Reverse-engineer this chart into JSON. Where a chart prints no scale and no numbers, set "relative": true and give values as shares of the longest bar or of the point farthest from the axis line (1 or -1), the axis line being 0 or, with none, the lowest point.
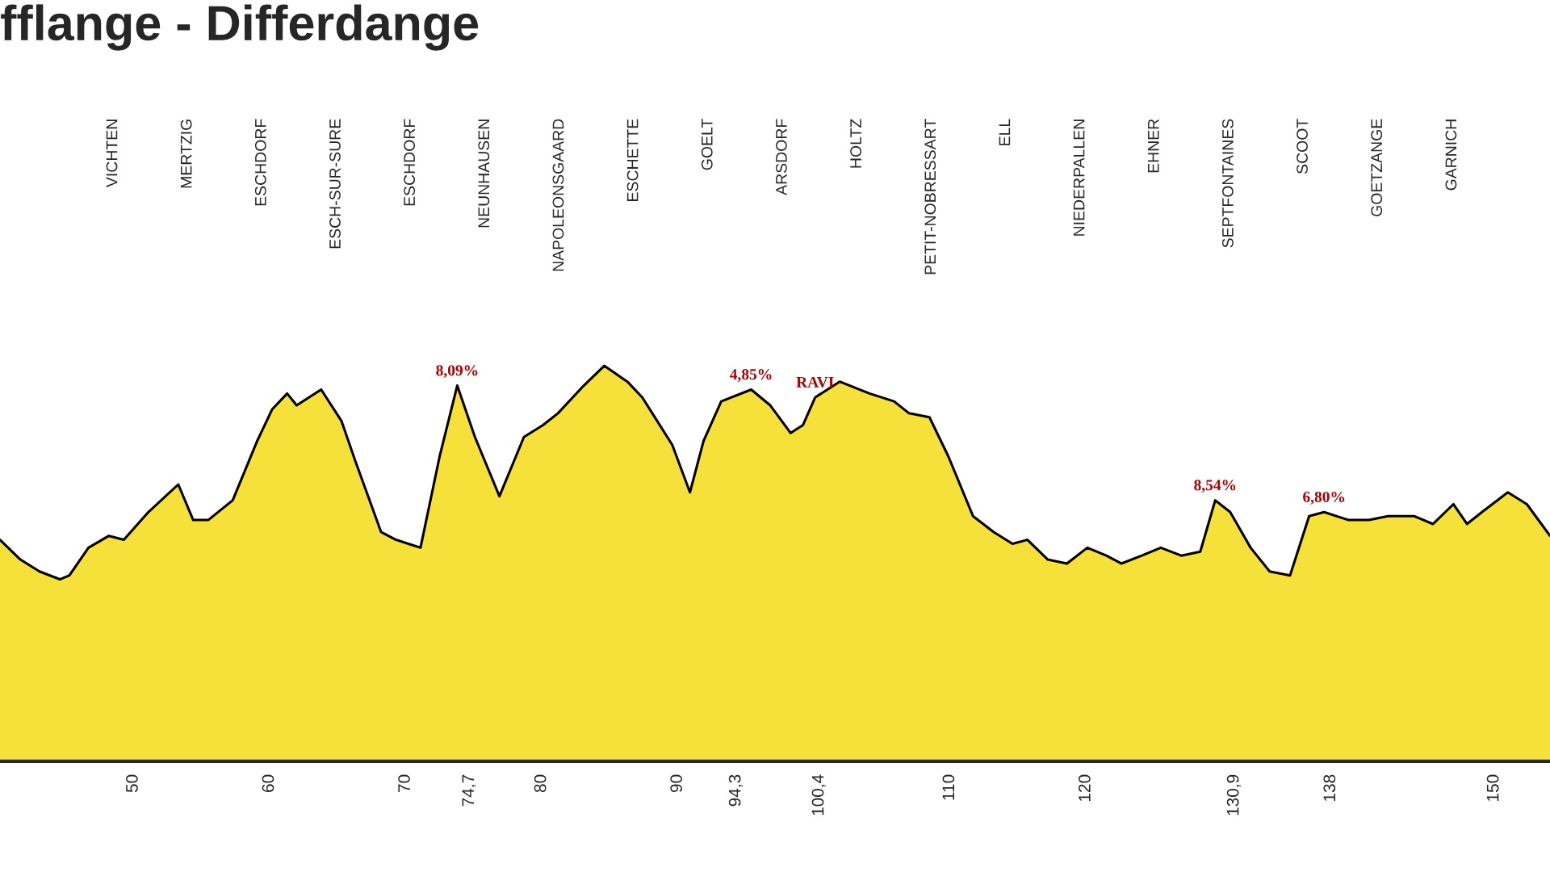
{
  "chart_data": {
    "type": "area",
    "title": "fflange - Differdange",
    "relative": true,
    "xlim": [
      40.2,
      154.1
    ],
    "xticks": [
      50,
      60,
      70,
      {
        "value": 74.7,
        "label": "74,7"
      },
      80,
      90,
      {
        "value": 94.3,
        "label": "94,3"
      },
      {
        "value": 100.4,
        "label": "100,4"
      },
      110,
      120,
      {
        "value": 130.9,
        "label": "130,9"
      },
      138,
      150
    ],
    "grid": false,
    "legend": false,
    "series": [
      {
        "color": "#f6e03a",
        "x": [
          40.2,
          41.7,
          43.1,
          44.6,
          45.3,
          46.7,
          48.2,
          49.3,
          51.1,
          53.3,
          54.4,
          55.5,
          57.3,
          59.1,
          60.2,
          61.3,
          62.0,
          63.8,
          65.3,
          66.3,
          68.2,
          69.3,
          71.1,
          72.5,
          73.8,
          75.1,
          76.9,
          78.7,
          80.1,
          81.2,
          83.1,
          84.6,
          86.3,
          87.4,
          88.5,
          89.6,
          90.9,
          91.9,
          93.2,
          95.4,
          96.8,
          98.3,
          99.2,
          100.1,
          101.9,
          104.1,
          105.9,
          107.0,
          108.5,
          109.9,
          111.7,
          113.2,
          114.6,
          115.7,
          117.2,
          118.6,
          120.1,
          121.5,
          122.6,
          124.1,
          125.5,
          127.0,
          128.4,
          129.5,
          130.6,
          132.1,
          133.5,
          135.0,
          136.4,
          137.5,
          139.3,
          140.8,
          142.2,
          144.1,
          145.5,
          147.0,
          148.0,
          149.1,
          151.0,
          152.4,
          154.1
        ],
        "values": [
          0.56,
          0.51,
          0.48,
          0.46,
          0.47,
          0.54,
          0.57,
          0.56,
          0.63,
          0.7,
          0.61,
          0.61,
          0.66,
          0.81,
          0.89,
          0.93,
          0.9,
          0.94,
          0.86,
          0.76,
          0.58,
          0.56,
          0.54,
          0.77,
          0.95,
          0.82,
          0.67,
          0.82,
          0.85,
          0.88,
          0.95,
          1,
          0.96,
          0.92,
          0.86,
          0.8,
          0.68,
          0.81,
          0.91,
          0.94,
          0.9,
          0.83,
          0.85,
          0.92,
          0.96,
          0.93,
          0.91,
          0.88,
          0.87,
          0.77,
          0.62,
          0.58,
          0.55,
          0.56,
          0.51,
          0.5,
          0.54,
          0.52,
          0.5,
          0.52,
          0.54,
          0.52,
          0.53,
          0.66,
          0.63,
          0.54,
          0.48,
          0.47,
          0.62,
          0.63,
          0.61,
          0.61,
          0.62,
          0.62,
          0.6,
          0.65,
          0.6,
          0.63,
          0.68,
          0.65,
          0.57
        ]
      }
    ],
    "annotations": [
      "VICHTEN",
      "MERTZIG",
      "ESCHDORF",
      "ESCH-SUR-SURE",
      "ESCHDORF",
      "NEUNHAUSEN",
      "NAPOLEONSGAARD",
      "ESCHETTE",
      "GOELT",
      "ARSDORF",
      "HOLTZ",
      "PETIT-NOBRESSART",
      "ELL",
      "NIEDERPALLEN",
      "EHNER",
      "SEPTFONTAINES",
      "SCOOT",
      "GOETZANGE",
      "GARNICH",
      {
        "text": "8,09%",
        "x": 73.8,
        "y": 0.95
      },
      {
        "text": "4,85%",
        "x": 95.4,
        "y": 0.94
      },
      {
        "text": "RAVI",
        "x": 100.1,
        "y": 0.92
      },
      {
        "text": "8,54%",
        "x": 129.5,
        "y": 0.66
      },
      {
        "text": "6,80%",
        "x": 137.5,
        "y": 0.63
      }
    ]
  }
}
